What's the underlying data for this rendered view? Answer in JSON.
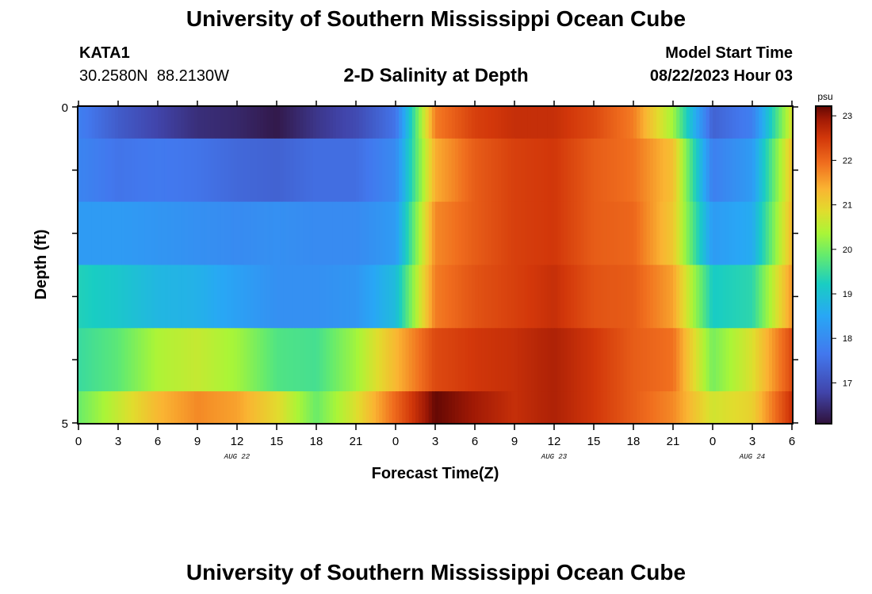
{
  "header": {
    "title": "University of Southern Mississippi Ocean Cube",
    "station_id": "KATA1",
    "coordinates": "30.2580N  88.2130W",
    "plot_title": "2-D Salinity at Depth",
    "model_start_label": "Model Start Time",
    "model_start_value": "08/22/2023 Hour 03"
  },
  "footer": {
    "title": "University of Southern Mississippi Ocean Cube"
  },
  "chart_data": {
    "type": "heatmap",
    "title": "2-D Salinity at Depth",
    "xlabel": "Forecast Time(Z)",
    "ylabel": "Depth (ft)",
    "x_range_hours": [
      0,
      54
    ],
    "y_range_ft": [
      0,
      5
    ],
    "x_tick_labels": [
      "0",
      "3",
      "6",
      "9",
      "12",
      "15",
      "18",
      "21",
      "0",
      "3",
      "6",
      "9",
      "12",
      "15",
      "18",
      "21",
      "0",
      "3",
      "6"
    ],
    "y_tick_labels": [
      "0",
      "5"
    ],
    "date_labels": [
      {
        "label": "AUG 22",
        "hour": 12
      },
      {
        "label": "AUG 23",
        "hour": 36
      },
      {
        "label": "AUG 24",
        "hour": 51
      }
    ],
    "colorbar": {
      "unit": "psu",
      "min": 16.1,
      "max": 23.2,
      "ticks": [
        "17",
        "18",
        "19",
        "20",
        "21",
        "22",
        "23"
      ]
    },
    "depth_layer_edges_ft": [
      0,
      0.5,
      1.5,
      2.5,
      3.5,
      4.5,
      5.0
    ],
    "time_hours": [
      0,
      3,
      6,
      9,
      12,
      15,
      18,
      21,
      24,
      27,
      30,
      33,
      36,
      39,
      42,
      45,
      48,
      51,
      54
    ],
    "salinity_psu": [
      [
        17.8,
        17.2,
        16.8,
        16.5,
        16.4,
        16.2,
        16.6,
        16.9,
        17.6,
        21.8,
        22.4,
        22.6,
        22.6,
        22.3,
        21.8,
        20.3,
        17.3,
        17.8,
        20.8
      ],
      [
        17.9,
        17.6,
        17.7,
        17.6,
        17.4,
        17.3,
        17.5,
        17.5,
        18.0,
        21.4,
        22.1,
        22.4,
        22.5,
        22.1,
        21.9,
        21.2,
        17.8,
        18.3,
        21.2
      ],
      [
        18.3,
        18.3,
        18.2,
        18.1,
        18.0,
        18.1,
        18.0,
        18.0,
        18.3,
        21.7,
        22.1,
        22.4,
        22.5,
        22.1,
        22.0,
        21.1,
        18.3,
        18.6,
        21.3
      ],
      [
        19.3,
        19.1,
        18.8,
        18.7,
        18.4,
        18.1,
        18.1,
        18.2,
        18.9,
        21.8,
        22.2,
        22.4,
        22.6,
        22.2,
        22.1,
        21.5,
        19.2,
        19.4,
        21.6
      ],
      [
        19.5,
        19.8,
        20.4,
        20.6,
        20.3,
        19.7,
        19.6,
        20.3,
        21.3,
        22.3,
        22.5,
        22.6,
        22.8,
        22.5,
        22.1,
        21.9,
        20.0,
        20.8,
        22.3
      ],
      [
        19.9,
        20.6,
        21.3,
        21.7,
        21.5,
        20.9,
        19.9,
        20.8,
        22.0,
        23.2,
        22.9,
        22.6,
        22.8,
        22.5,
        22.1,
        21.7,
        20.7,
        21.0,
        22.6
      ]
    ]
  }
}
